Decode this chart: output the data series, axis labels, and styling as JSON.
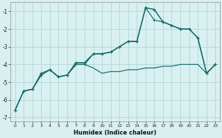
{
  "title": "",
  "xlabel": "Humidex (Indice chaleur)",
  "bg_color": "#d8f0f0",
  "grid_color": "#b8d8d8",
  "line_color": "#1a6b6b",
  "xlim": [
    -0.5,
    23.5
  ],
  "ylim": [
    -7.2,
    -0.5
  ],
  "yticks": [
    -7,
    -6,
    -5,
    -4,
    -3,
    -2,
    -1
  ],
  "xticks": [
    0,
    1,
    2,
    3,
    4,
    5,
    6,
    7,
    8,
    9,
    10,
    11,
    12,
    13,
    14,
    15,
    16,
    17,
    18,
    19,
    20,
    21,
    22,
    23
  ],
  "line1_x": [
    0,
    1,
    2,
    3,
    4,
    5,
    6,
    7,
    8,
    9,
    10,
    11,
    12,
    13,
    14,
    15,
    16,
    17,
    18,
    19,
    20,
    21,
    22,
    23
  ],
  "line1_y": [
    -6.6,
    -5.5,
    -5.4,
    -4.6,
    -4.3,
    -4.7,
    -4.6,
    -3.9,
    -3.9,
    -3.4,
    -3.4,
    -3.3,
    -3.0,
    -2.7,
    -2.7,
    -0.8,
    -0.9,
    -1.6,
    -1.8,
    -2.0,
    -2.0,
    -2.5,
    -4.5,
    -4.0
  ],
  "line2_x": [
    0,
    1,
    2,
    3,
    4,
    5,
    6,
    7,
    8,
    9,
    10,
    11,
    12,
    13,
    14,
    15,
    16,
    17,
    18,
    19,
    20,
    21,
    22,
    23
  ],
  "line2_y": [
    -6.6,
    -5.5,
    -5.4,
    -4.6,
    -4.3,
    -4.7,
    -4.6,
    -4.0,
    -4.0,
    -4.2,
    -4.5,
    -4.4,
    -4.4,
    -4.3,
    -4.3,
    -4.2,
    -4.2,
    -4.1,
    -4.1,
    -4.0,
    -4.0,
    -4.0,
    -4.5,
    -4.0
  ],
  "line3_x": [
    0,
    1,
    2,
    3,
    4,
    5,
    6,
    7,
    8,
    9,
    10,
    11,
    12,
    13,
    14,
    15,
    16,
    17,
    18,
    19,
    20,
    21,
    22,
    23
  ],
  "line3_y": [
    -6.6,
    -5.5,
    -5.4,
    -4.5,
    -4.3,
    -4.7,
    -4.6,
    -4.0,
    -4.0,
    -3.4,
    -3.4,
    -3.3,
    -3.0,
    -2.7,
    -2.7,
    -0.8,
    -1.5,
    -1.6,
    -1.8,
    -2.0,
    -2.0,
    -2.5,
    -4.5,
    -4.0
  ],
  "line4_x": [
    0,
    1,
    2,
    3,
    4,
    5,
    6,
    7,
    8,
    9,
    10,
    11,
    12,
    13,
    14,
    15,
    16,
    17,
    18,
    19,
    20,
    21,
    22,
    23
  ],
  "line4_y": [
    -6.6,
    -5.5,
    -5.4,
    -4.6,
    -4.3,
    -4.7,
    -4.6,
    -3.9,
    -3.9,
    -3.4,
    -3.4,
    -3.3,
    -3.0,
    -2.7,
    -2.7,
    -0.8,
    -0.9,
    -1.6,
    -1.8,
    -2.0,
    -2.0,
    -2.5,
    -4.5,
    -4.0
  ]
}
